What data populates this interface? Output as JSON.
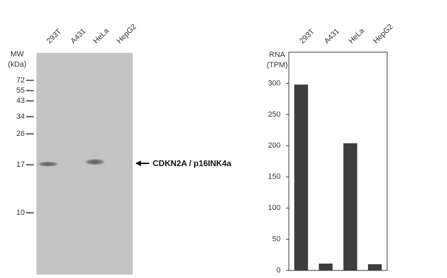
{
  "blot": {
    "mw_label": "MW",
    "unit_label": "(kDa)",
    "lanes": [
      "293T",
      "A431",
      "HeLa",
      "HepG2"
    ],
    "markers": [
      "72",
      "55",
      "43",
      "34",
      "26",
      "17",
      "10"
    ],
    "annotation": "CDKN2A  / p16INK4a"
  },
  "chart_data": {
    "type": "bar",
    "y_label": [
      "RNA",
      "(TPM)"
    ],
    "categories": [
      "293T",
      "A431",
      "HeLa",
      "HepG2"
    ],
    "values": [
      298,
      11,
      204,
      10
    ],
    "color": "#3d3d3d",
    "ylim": [
      0,
      350
    ],
    "yticks": [
      0,
      50,
      100,
      150,
      200,
      250,
      300
    ]
  }
}
